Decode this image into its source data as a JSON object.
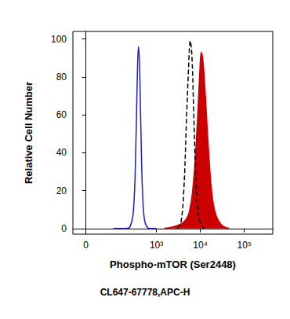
{
  "chart_data": {
    "type": "line",
    "xlabel": "Phospho-mTOR (Ser2448)",
    "subtitle": "CL647-67778,APC-H",
    "ylabel": "Relative Cell Number",
    "log": "x",
    "xlim": [
      -37,
      444000
    ],
    "xticks": [
      0,
      {
        "value": 1000,
        "label": "10³"
      },
      {
        "value": 10000,
        "label": "10⁴"
      },
      {
        "value": 100000,
        "label": "10⁵"
      }
    ],
    "ylim": [
      -3,
      104
    ],
    "yticks": [
      0,
      20,
      40,
      60,
      80,
      100
    ],
    "grid": false,
    "series": [
      {
        "type": "area",
        "color": "#cc0000",
        "line_style": "solid",
        "x": [
          1500,
          2500,
          4000,
          5500,
          7000,
          8500,
          9600,
          10500,
          11500,
          13000,
          15000,
          18000,
          22000,
          30000,
          45000
        ],
        "values": [
          0,
          1,
          3,
          8,
          25,
          55,
          80,
          93,
          88,
          70,
          45,
          20,
          8,
          2,
          0
        ]
      },
      {
        "type": "line",
        "color": "#000000",
        "line_style": "dashed",
        "x": [
          3000,
          3600,
          4200,
          4800,
          5400,
          5900,
          6400,
          7000,
          7800,
          8800,
          10000,
          12000
        ],
        "values": [
          0,
          3,
          20,
          55,
          85,
          99,
          92,
          65,
          30,
          10,
          3,
          0
        ]
      },
      {
        "type": "line",
        "color": "#2020c0",
        "line_style": "solid",
        "x": [
          100,
          200,
          250,
          300,
          340,
          370,
          390,
          410,
          440,
          480,
          530,
          600,
          700,
          1000
        ],
        "values": [
          0,
          0,
          1,
          10,
          45,
          85,
          96,
          88,
          55,
          20,
          5,
          1,
          0,
          0
        ]
      }
    ]
  }
}
